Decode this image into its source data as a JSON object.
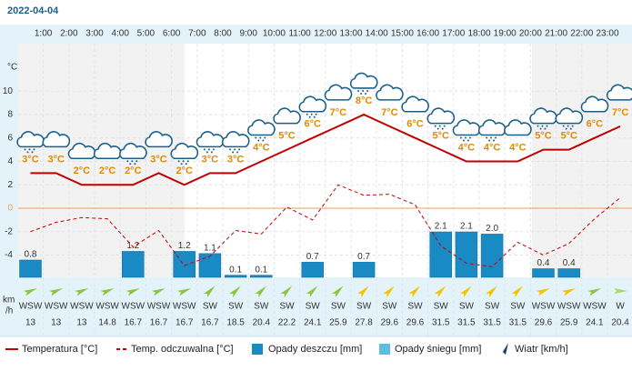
{
  "chart_data": {
    "type": "weather",
    "title": "2022-04-04",
    "hours": [
      "1:00",
      "2:00",
      "3:00",
      "4:00",
      "5:00",
      "6:00",
      "7:00",
      "8:00",
      "9:00",
      "10:00",
      "11:00",
      "12:00",
      "13:00",
      "14:00",
      "15:00",
      "16:00",
      "17:00",
      "18:00",
      "19:00",
      "20:00",
      "21:00",
      "22:00",
      "23:00"
    ],
    "y_unit": "°C",
    "ylim": [
      -5.9,
      13.9
    ],
    "yticks": [
      10,
      8,
      6,
      4,
      2,
      0,
      -2,
      -4
    ],
    "zero_color": "#f0a050",
    "grid": true,
    "temperature": {
      "name": "Temperatura [°C]",
      "color": "#c00000",
      "values": [
        3,
        3,
        2,
        2,
        2,
        3,
        2,
        3,
        3,
        4,
        5,
        6,
        7,
        8,
        7,
        6,
        5,
        4,
        4,
        4,
        5,
        5,
        6,
        7
      ],
      "value_labels": [
        "3°C",
        "3°C",
        "2°C",
        "2°C",
        "2°C",
        "3°C",
        "2°C",
        "3°C",
        "3°C",
        "4°C",
        "5°C",
        "6°C",
        "7°C",
        "8°C",
        "7°C",
        "6°C",
        "5°C",
        "4°C",
        "4°C",
        "4°C",
        "5°C",
        "5°C",
        "6°C",
        "7°C"
      ]
    },
    "feels_like": {
      "name": "Temp. odczuwalna [°C]",
      "color": "#c00000",
      "values": [
        -2,
        -1.2,
        -0.8,
        -0.9,
        -3.3,
        -1.9,
        -4.9,
        -4.1,
        -1.9,
        -2.2,
        0.1,
        -1,
        2,
        1.1,
        1.2,
        0.3,
        -3.2,
        -4.7,
        -5,
        -2.9,
        -4,
        -3,
        -0.9,
        0.9
      ]
    },
    "rain": {
      "name": "Opady deszczu [mm]",
      "color": "#1a8ac4",
      "values": [
        0.8,
        null,
        null,
        null,
        1.2,
        null,
        1.2,
        1.1,
        0.1,
        0.1,
        null,
        0.7,
        null,
        0.7,
        null,
        null,
        2.1,
        2.1,
        2.0,
        null,
        0.4,
        0.4,
        null,
        null
      ],
      "value_labels": [
        "0.8",
        null,
        null,
        null,
        "1.2",
        null,
        "1.2",
        "1.1",
        "0.1",
        "0.1",
        null,
        "0.7",
        null,
        "0.7",
        null,
        null,
        "2.1",
        "2.1",
        "2.0",
        null,
        "0.4",
        "0.4",
        null,
        null
      ]
    },
    "snow": {
      "name": "Opady śniegu [mm]",
      "color": "#5bbde0"
    },
    "wind": {
      "name": "Wiatr [km/h]",
      "unit_label": [
        "km",
        "/h"
      ],
      "directions": [
        "WSW",
        "WSW",
        "WSW",
        "WSW",
        "WSW",
        "WSW",
        "WSW",
        "SW",
        "SW",
        "SW",
        "SW",
        "SW",
        "SW",
        "SW",
        "SW",
        "SW",
        "SW",
        "SW",
        "SW",
        "SW",
        "WSW",
        "WSW",
        "WSW",
        "W"
      ],
      "speeds": [
        13,
        13,
        13,
        14.8,
        16.7,
        16.7,
        16.7,
        16.7,
        18.5,
        20.4,
        22.2,
        24.1,
        25.9,
        27.8,
        29.6,
        29.6,
        31.5,
        31.5,
        31.5,
        31.5,
        29.6,
        25.9,
        24.1,
        20.4
      ],
      "colors": [
        "#8cc63f",
        "#8cc63f",
        "#8cc63f",
        "#8cc63f",
        "#8cc63f",
        "#8cc63f",
        "#8cc63f",
        "#8cc63f",
        "#8cc63f",
        "#8cc63f",
        "#8cc63f",
        "#8cc63f",
        "#8cc63f",
        "#f5c400",
        "#f5c400",
        "#f5c400",
        "#f5c400",
        "#f5c400",
        "#f5c400",
        "#f5c400",
        "#f5c400",
        "#f5c400",
        "#8cc63f",
        "#a8d860"
      ]
    }
  }
}
